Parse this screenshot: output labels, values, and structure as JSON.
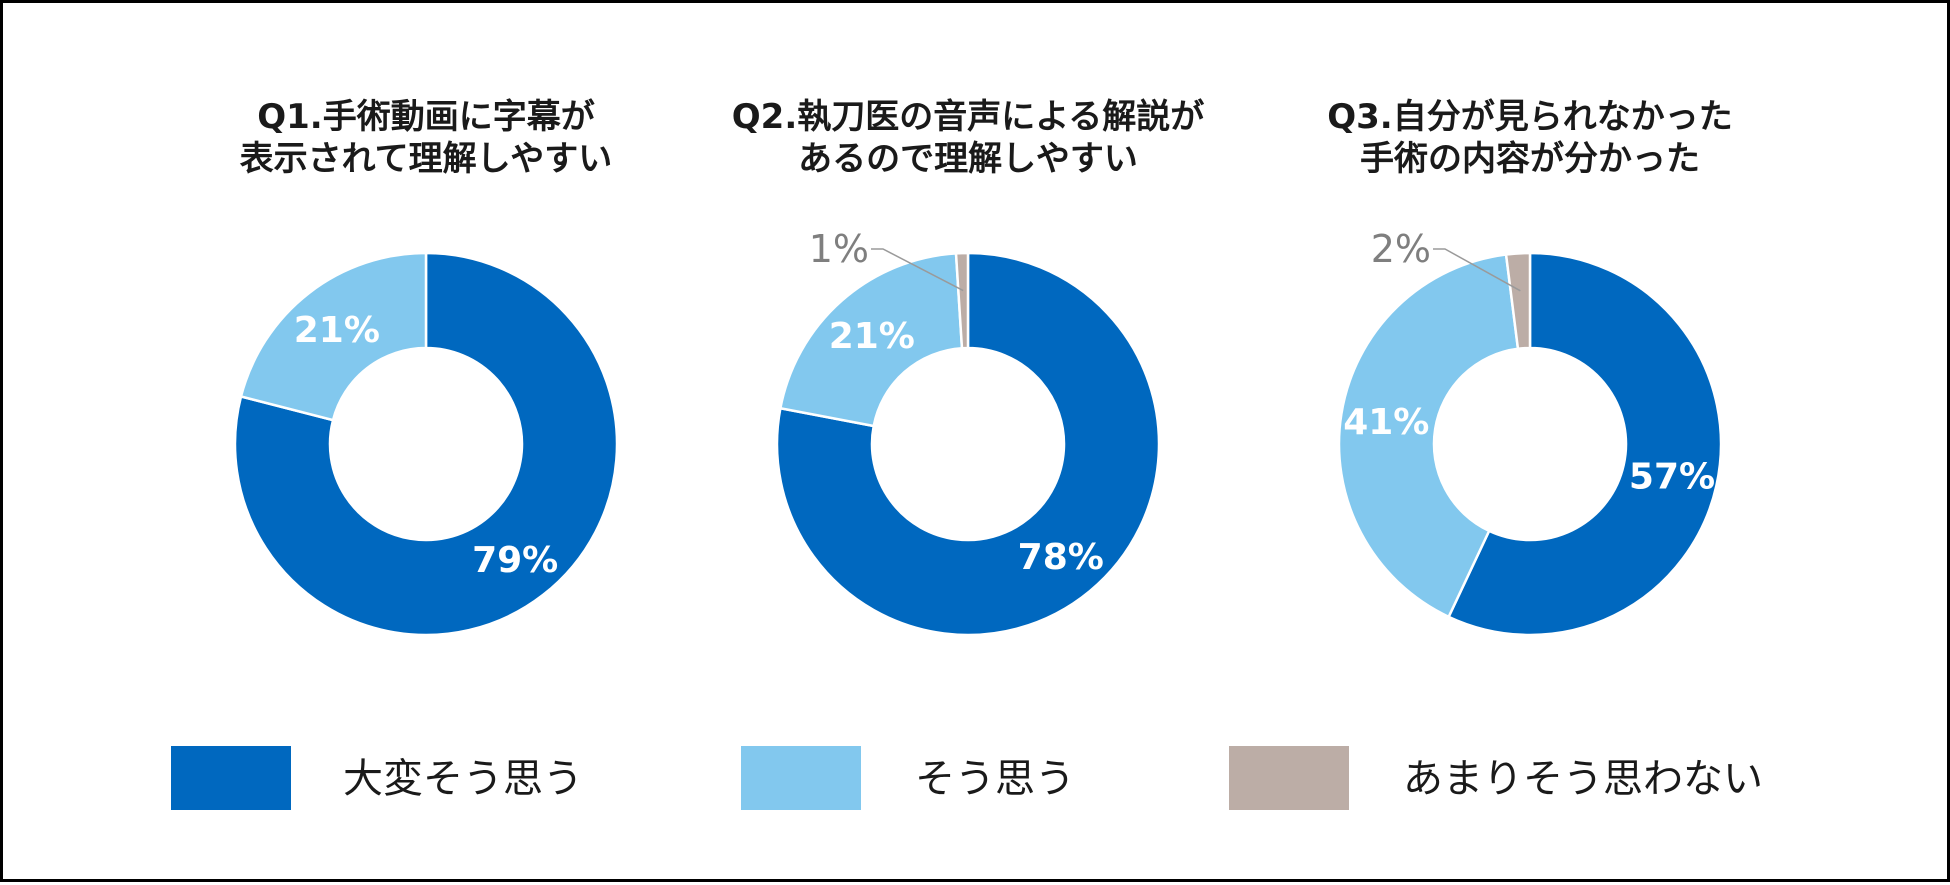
{
  "chart_data": [
    {
      "type": "pie",
      "variant": "donut",
      "title": [
        "Q1.手術動画に字幕が",
        "表示されて理解しやすい"
      ],
      "categories": [
        "大変そう思う",
        "そう思う"
      ],
      "values": [
        79,
        21
      ],
      "labels": [
        "79%",
        "21%"
      ]
    },
    {
      "type": "pie",
      "variant": "donut",
      "title": [
        "Q2.執刀医の音声による解説が",
        "あるので理解しやすい"
      ],
      "categories": [
        "大変そう思う",
        "そう思う",
        "あまりそう思わない"
      ],
      "values": [
        78,
        21,
        1
      ],
      "labels": [
        "78%",
        "21%",
        "1%"
      ]
    },
    {
      "type": "pie",
      "variant": "donut",
      "title": [
        "Q3.自分が見られなかった",
        "手術の内容が分かった"
      ],
      "categories": [
        "大変そう思う",
        "そう思う",
        "あまりそう思わない"
      ],
      "values": [
        57,
        41,
        2
      ],
      "labels": [
        "57%",
        "41%",
        "2%"
      ]
    }
  ],
  "legend": [
    {
      "label": "大変そう思う",
      "color": "#0068bf"
    },
    {
      "label": "そう思う",
      "color": "#82c8ee"
    },
    {
      "label": "あまりそう思わない",
      "color": "#bcada6"
    }
  ],
  "colors": {
    "strongly_agree": "#0068bf",
    "agree": "#82c8ee",
    "disagree": "#bcada6",
    "callout_text": "#7f7f7f"
  }
}
